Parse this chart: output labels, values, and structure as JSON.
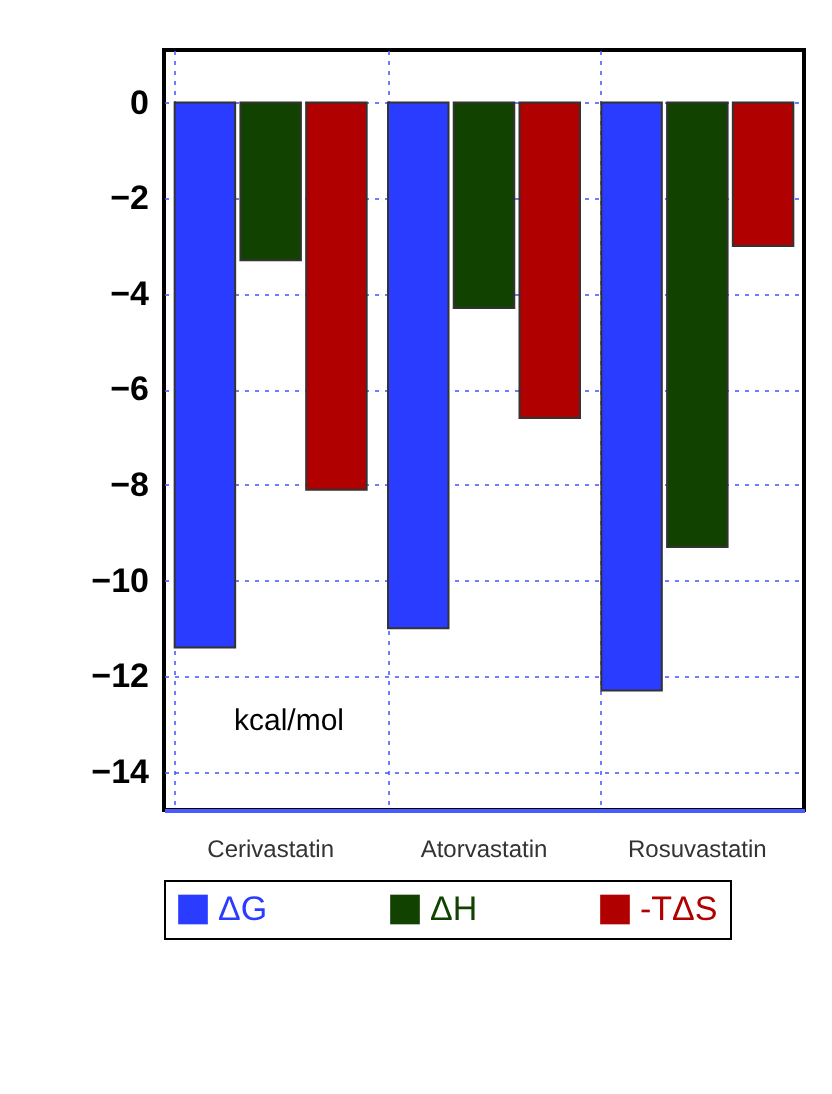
{
  "chart_data": {
    "type": "bar",
    "categories": [
      "Cerivastatin",
      "Atorvastatin",
      "Rosuvastatin"
    ],
    "series": [
      {
        "name": "ΔG",
        "color": "#2a3cff",
        "values": [
          -11.4,
          -11.0,
          -12.3
        ]
      },
      {
        "name": "ΔH",
        "color": "#124200",
        "values": [
          -3.3,
          -4.3,
          -9.3
        ]
      },
      {
        "name": "-TΔS",
        "color": "#b00000",
        "values": [
          -8.1,
          -6.6,
          -3.0
        ]
      }
    ],
    "ylim": [
      -14.8,
      1.1
    ],
    "yticks": [
      0,
      -2,
      -4,
      -6,
      -8,
      -10,
      -12,
      -14
    ],
    "grid": true,
    "legend": "bottom",
    "annotations": [
      "kcal/mol"
    ]
  }
}
